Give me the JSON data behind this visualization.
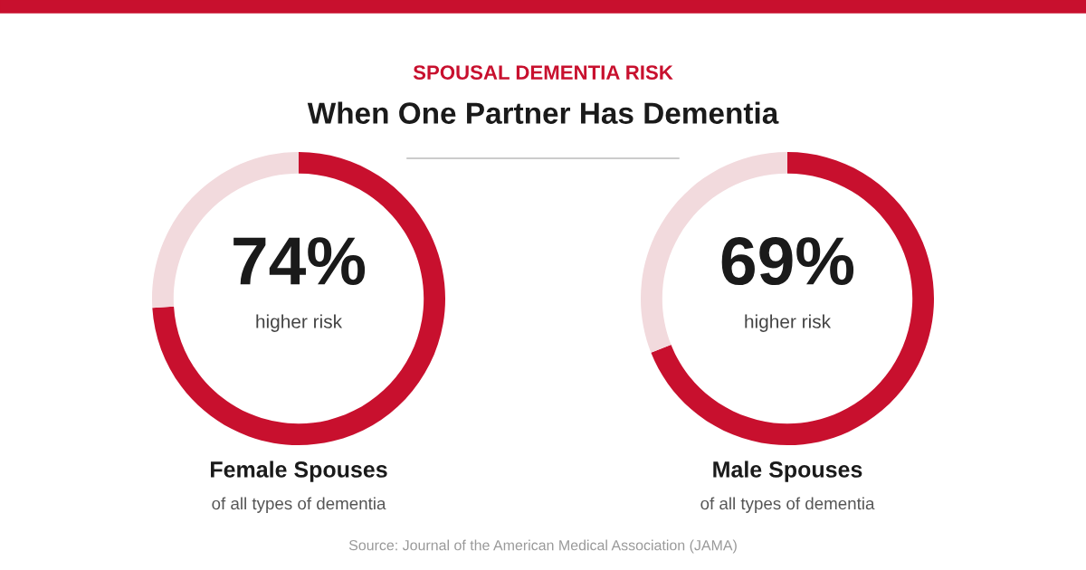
{
  "chart_data": [
    {
      "type": "donut",
      "subtitle": "SPOUSAL DEMENTIA RISK",
      "title": "When One Partner Has Dementia",
      "categories": [
        null,
        null
      ],
      "values": [
        74,
        26
      ],
      "colors": [
        "#c8102e",
        "#f2dadd"
      ],
      "value_labels": [
        "74%",
        null
      ],
      "xlabel": "Female Spouses",
      "annotations": [
        "higher risk",
        "of all types of dementia"
      ],
      "legend": false
    },
    {
      "type": "donut",
      "categories": [
        null,
        null
      ],
      "values": [
        69,
        31
      ],
      "colors": [
        "#c8102e",
        "#f2dadd"
      ],
      "value_labels": [
        "69%",
        null
      ],
      "xlabel": "Male Spouses",
      "annotations": [
        "higher risk",
        "of all types of dementia",
        "Source: Journal of the American Medical Association (JAMA)"
      ],
      "legend": false
    }
  ]
}
